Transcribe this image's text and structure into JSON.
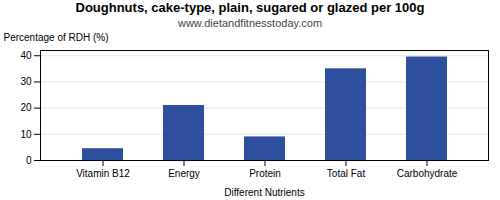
{
  "chart_data": {
    "type": "bar",
    "title": "Doughnuts, cake-type, plain, sugared or glazed per 100g",
    "subtitle": "www.dietandfitnesstoday.com",
    "xlabel": "Different Nutrients",
    "ylabel": "Percentage of RDH (%)",
    "categories": [
      "Vitamin B12",
      "Energy",
      "Protein",
      "Total Fat",
      "Carbohydrate"
    ],
    "values": [
      4.5,
      21,
      9,
      35,
      39.5
    ],
    "color": "#2d4f9e",
    "ylim": [
      0,
      42
    ],
    "yticks": [
      0,
      10,
      20,
      30,
      40
    ],
    "grid": true
  }
}
